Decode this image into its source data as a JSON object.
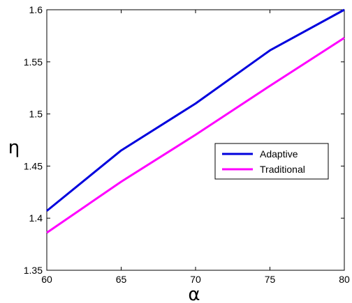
{
  "chart_data": {
    "type": "line",
    "xlabel": "α",
    "ylabel": "η",
    "xlim": [
      60,
      80
    ],
    "ylim": [
      1.35,
      1.6
    ],
    "x_ticks": [
      60,
      65,
      70,
      75,
      80
    ],
    "y_ticks": [
      1.35,
      1.4,
      1.45,
      1.5,
      1.55,
      1.6
    ],
    "x_tick_labels": [
      "60",
      "65",
      "70",
      "75",
      "80"
    ],
    "y_tick_labels": [
      "1.35",
      "1.4",
      "1.45",
      "1.5",
      "1.55",
      "1.6"
    ],
    "grid": false,
    "legend_position": "center-right",
    "x": [
      60,
      65,
      70,
      75,
      80
    ],
    "series": [
      {
        "name": "Adaptive",
        "color": "#0000dd",
        "values": [
          1.407,
          1.465,
          1.51,
          1.561,
          1.6
        ]
      },
      {
        "name": "Traditional",
        "color": "#ff00ff",
        "values": [
          1.386,
          1.435,
          1.48,
          1.527,
          1.573
        ]
      }
    ]
  }
}
